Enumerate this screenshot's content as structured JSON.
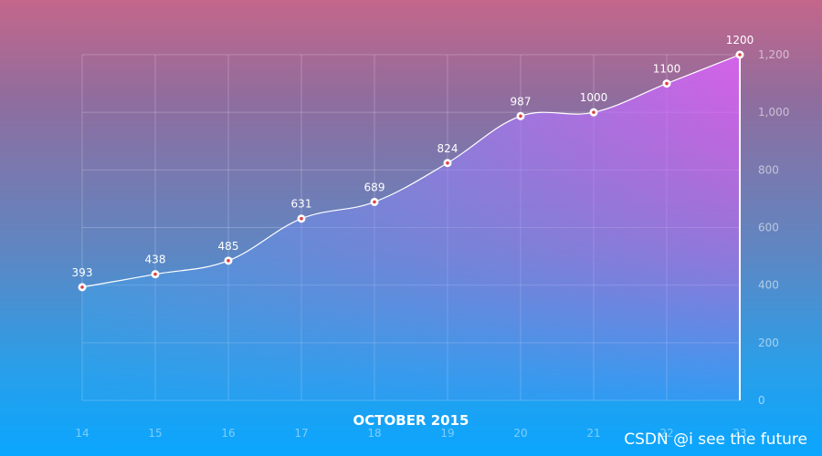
{
  "chart_data": {
    "type": "area",
    "x": [
      "14",
      "15",
      "16",
      "17",
      "18",
      "19",
      "20",
      "21",
      "22",
      "23"
    ],
    "values": [
      393,
      438,
      485,
      631,
      689,
      824,
      987,
      1000,
      1100,
      1200
    ],
    "data_labels": [
      "393",
      "438",
      "485",
      "631",
      "689",
      "824",
      "987",
      "1000",
      "1100",
      "1200"
    ],
    "xlabel": "OCTOBER 2015",
    "ylim": [
      0,
      1200
    ],
    "y_ticks": [
      0,
      200,
      400,
      600,
      800,
      1000,
      1200
    ],
    "y_tick_labels": [
      "0",
      "200",
      "400",
      "600",
      "800",
      "1,000",
      "1,200"
    ],
    "y_axis_position": "right",
    "grid": true,
    "line_color": "#ffffff",
    "area_gradient": [
      "#e060ff",
      "#40a8f0"
    ],
    "marker_fill": "#ffffff",
    "marker_center_color": "#e04040"
  },
  "watermark": "CSDN @i see the future"
}
